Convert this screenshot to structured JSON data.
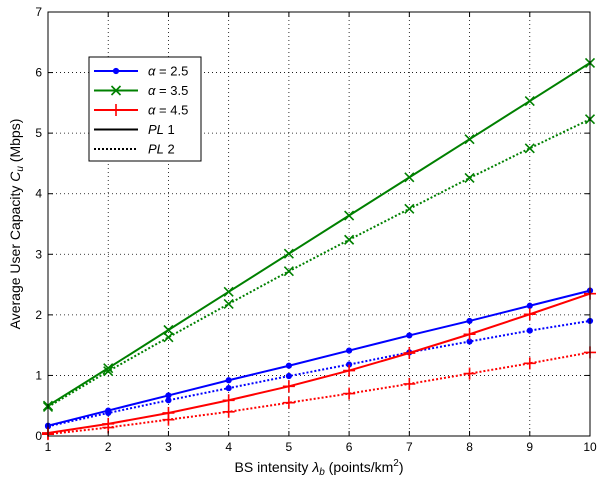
{
  "chart_data": {
    "type": "line",
    "title": "",
    "xlabel_prefix": "BS intensity ",
    "xlabel_symbol": "λ",
    "xlabel_subscript": "b",
    "xlabel_unit_open": " (points/km",
    "xlabel_unit_sup": "2",
    "xlabel_unit_close": ")",
    "ylabel_prefix": "Average User Capacity  ",
    "ylabel_symbol": "C",
    "ylabel_subscript": "u",
    "ylabel_unit": " (Mbps)",
    "xlim": [
      1,
      10
    ],
    "ylim": [
      0,
      7
    ],
    "xticks": [
      "1",
      "2",
      "3",
      "4",
      "5",
      "6",
      "7",
      "8",
      "9",
      "10"
    ],
    "yticks": [
      "0",
      "1",
      "2",
      "3",
      "4",
      "5",
      "6",
      "7"
    ],
    "grid": true,
    "legend_position": "top-left",
    "legend": [
      {
        "symbol": "α",
        "text": " = 2.5",
        "color": "#0000ff",
        "marker": "dot",
        "dash": "solid"
      },
      {
        "symbol": "α",
        "text": " = 3.5",
        "color": "#008000",
        "marker": "x",
        "dash": "solid"
      },
      {
        "symbol": "α",
        "text": " = 4.5",
        "color": "#ff0000",
        "marker": "plus",
        "dash": "solid"
      },
      {
        "symbol": "PL",
        "text": " 1",
        "color": "#000000",
        "marker": "none",
        "dash": "solid"
      },
      {
        "symbol": "PL",
        "text": " 2",
        "color": "#000000",
        "marker": "none",
        "dash": "dotted"
      }
    ],
    "x": [
      1,
      2,
      3,
      4,
      5,
      6,
      7,
      8,
      9,
      10
    ],
    "series": [
      {
        "color": "#0000ff",
        "marker": "dot",
        "dash": "solid",
        "values": [
          0.17,
          0.42,
          0.67,
          0.92,
          1.16,
          1.41,
          1.66,
          1.9,
          2.15,
          2.4
        ]
      },
      {
        "color": "#0000ff",
        "marker": "dot",
        "dash": "dotted",
        "values": [
          0.16,
          0.38,
          0.59,
          0.79,
          0.99,
          1.18,
          1.38,
          1.56,
          1.74,
          1.9
        ]
      },
      {
        "color": "#008000",
        "marker": "x",
        "dash": "solid",
        "values": [
          0.5,
          1.12,
          1.75,
          2.38,
          3.01,
          3.64,
          4.27,
          4.9,
          5.53,
          6.16
        ]
      },
      {
        "color": "#008000",
        "marker": "x",
        "dash": "dotted",
        "values": [
          0.48,
          1.07,
          1.63,
          2.18,
          2.72,
          3.24,
          3.75,
          4.26,
          4.75,
          5.23
        ]
      },
      {
        "color": "#ff0000",
        "marker": "plus",
        "dash": "solid",
        "values": [
          0.05,
          0.2,
          0.38,
          0.59,
          0.82,
          1.08,
          1.37,
          1.68,
          2.01,
          2.35
        ]
      },
      {
        "color": "#ff0000",
        "marker": "plus",
        "dash": "dotted",
        "values": [
          0.03,
          0.14,
          0.27,
          0.4,
          0.55,
          0.7,
          0.86,
          1.03,
          1.2,
          1.38
        ]
      }
    ]
  }
}
